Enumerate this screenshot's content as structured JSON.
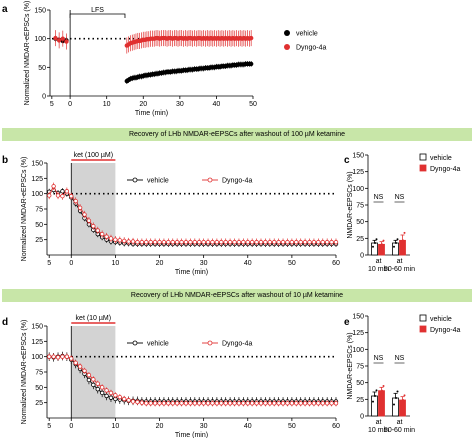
{
  "banners": {
    "b": "Recovery of LHb NMDAR-eEPSCs after washout of  100 µM ketamine",
    "d": "Recovery of LHb NMDAR-eEPSCs after washout of  10 µM ketamine"
  },
  "colors": {
    "vehicle": "#000000",
    "dyngo": "#e03030",
    "shade": "#d3d3d3",
    "banner": "#c8e6a8"
  },
  "chart_data": [
    {
      "panel": "a",
      "type": "scatter",
      "ylabel": "Normalized NMDAR-eEPSCs (%)",
      "xlabel": "Time (min)",
      "xticks": [
        -5,
        0,
        10,
        20,
        30,
        40,
        50
      ],
      "xtick_labels": [
        "5",
        "0",
        "10",
        "20",
        "30",
        "40",
        "50"
      ],
      "yticks": [
        0,
        50,
        100,
        150
      ],
      "xlim": [
        -5.5,
        50
      ],
      "ylim": [
        0,
        150
      ],
      "annotation": "LFS",
      "annotation_range": [
        0,
        15
      ],
      "reference_line": 100,
      "legend": [
        "vehicle",
        "Dyngo-4a"
      ],
      "series": [
        {
          "name": "vehicle",
          "style": "filled-circle",
          "x": [
            -4,
            -3,
            -2,
            -1,
            15.5,
            16,
            16.5,
            17,
            17.5,
            18,
            18.5,
            19,
            19.5,
            20,
            20.5,
            21,
            21.5,
            22,
            22.5,
            23,
            23.5,
            24,
            24.5,
            25,
            25.5,
            26,
            26.5,
            27,
            27.5,
            28,
            28.5,
            29,
            29.5,
            30,
            30.5,
            31,
            31.5,
            32,
            32.5,
            33,
            33.5,
            34,
            34.5,
            35,
            35.5,
            36,
            36.5,
            37,
            37.5,
            38,
            38.5,
            39,
            39.5,
            40,
            40.5,
            41,
            41.5,
            42,
            42.5,
            43,
            43.5,
            44,
            44.5,
            45,
            45.5,
            46,
            46.5,
            47,
            47.5,
            48,
            48.5,
            49,
            49.5
          ],
          "y": [
            100,
            98,
            96,
            97,
            26,
            28,
            30,
            31,
            32,
            32,
            33,
            34,
            34,
            35,
            36,
            36,
            37,
            37,
            38,
            38,
            39,
            39,
            40,
            40,
            41,
            41,
            42,
            42,
            42,
            43,
            43,
            43,
            44,
            44,
            44,
            45,
            45,
            45,
            46,
            46,
            46,
            47,
            47,
            47,
            48,
            48,
            48,
            49,
            49,
            49,
            50,
            50,
            50,
            51,
            51,
            51,
            52,
            52,
            52,
            53,
            53,
            53,
            54,
            54,
            54,
            55,
            55,
            55,
            55,
            56,
            56,
            56,
            56
          ],
          "err": 5
        },
        {
          "name": "Dyngo-4a",
          "style": "filled-circle",
          "x": [
            -4,
            -3,
            -2,
            -1,
            15.5,
            16,
            16.5,
            17,
            17.5,
            18,
            18.5,
            19,
            19.5,
            20,
            20.5,
            21,
            21.5,
            22,
            22.5,
            23,
            23.5,
            24,
            24.5,
            25,
            25.5,
            26,
            26.5,
            27,
            27.5,
            28,
            28.5,
            29,
            29.5,
            30,
            30.5,
            31,
            31.5,
            32,
            32.5,
            33,
            33.5,
            34,
            34.5,
            35,
            35.5,
            36,
            36.5,
            37,
            37.5,
            38,
            38.5,
            39,
            39.5,
            40,
            40.5,
            41,
            41.5,
            42,
            42.5,
            43,
            43.5,
            44,
            44.5,
            45,
            45.5,
            46,
            46.5,
            47,
            47.5,
            48,
            48.5,
            49,
            49.5
          ],
          "y": [
            101,
            97,
            100,
            95,
            88,
            90,
            92,
            93,
            94,
            95,
            96,
            96,
            97,
            98,
            98,
            99,
            99,
            100,
            100,
            100,
            101,
            101,
            100,
            101,
            101,
            101,
            100,
            101,
            101,
            100,
            101,
            101,
            100,
            101,
            101,
            100,
            101,
            100,
            101,
            101,
            100,
            101,
            100,
            101,
            101,
            100,
            101,
            100,
            101,
            100,
            101,
            100,
            101,
            100,
            101,
            100,
            101,
            100,
            101,
            100,
            101,
            100,
            101,
            100,
            101,
            100,
            101,
            100,
            101,
            100,
            101,
            100,
            101
          ],
          "err": 14
        }
      ]
    },
    {
      "panel": "b",
      "type": "line",
      "ylabel": "Normalized NMDAR-eEPSCs (%)",
      "xlabel": "Time (min)",
      "xticks": [
        -5,
        0,
        10,
        20,
        30,
        40,
        50,
        60
      ],
      "xtick_labels": [
        "5",
        "0",
        "10",
        "20",
        "30",
        "40",
        "50",
        "60"
      ],
      "yticks": [
        25,
        50,
        75,
        100,
        125,
        150
      ],
      "xlim": [
        -5.5,
        60
      ],
      "ylim": [
        0,
        150
      ],
      "annotation": "ket (100 µM)",
      "annotation_range": [
        0,
        10
      ],
      "reference_line": 100,
      "legend": [
        "vehicle",
        "Dyngo-4a"
      ],
      "series": [
        {
          "name": "vehicle",
          "style": "open-circle",
          "x": [
            -5,
            -4,
            -3,
            -2,
            -1,
            0,
            1,
            2,
            3,
            4,
            5,
            6,
            7,
            8,
            9,
            10,
            11,
            12,
            13,
            14,
            15,
            16,
            17,
            18,
            19,
            20,
            21,
            22,
            23,
            24,
            25,
            26,
            27,
            28,
            29,
            30,
            31,
            32,
            33,
            34,
            35,
            36,
            37,
            38,
            39,
            40,
            41,
            42,
            43,
            44,
            45,
            46,
            47,
            48,
            49,
            50,
            51,
            52,
            53,
            54,
            55,
            56,
            57,
            58,
            59,
            60
          ],
          "y": [
            103,
            106,
            101,
            104,
            100,
            94,
            84,
            72,
            60,
            50,
            41,
            34,
            29,
            25,
            22,
            21,
            20,
            19,
            19,
            18,
            18,
            18,
            18,
            18,
            18,
            18,
            18,
            18,
            18,
            18,
            18,
            18,
            18,
            18,
            18,
            18,
            18,
            18,
            18,
            18,
            18,
            18,
            18,
            18,
            18,
            18,
            18,
            18,
            18,
            18,
            18,
            18,
            18,
            18,
            18,
            18,
            18,
            18,
            18,
            18,
            18,
            18,
            18,
            18,
            18,
            18
          ],
          "err": 5
        },
        {
          "name": "Dyngo-4a",
          "style": "open-circle",
          "x": [
            -5,
            -4,
            -3,
            -2,
            -1,
            0,
            1,
            2,
            3,
            4,
            5,
            6,
            7,
            8,
            9,
            10,
            11,
            12,
            13,
            14,
            15,
            16,
            17,
            18,
            19,
            20,
            21,
            22,
            23,
            24,
            25,
            26,
            27,
            28,
            29,
            30,
            31,
            32,
            33,
            34,
            35,
            36,
            37,
            38,
            39,
            40,
            41,
            42,
            43,
            44,
            45,
            46,
            47,
            48,
            49,
            50,
            51,
            52,
            53,
            54,
            55,
            56,
            57,
            58,
            59,
            60
          ],
          "y": [
            97,
            112,
            97,
            96,
            104,
            96,
            88,
            77,
            66,
            56,
            47,
            40,
            34,
            30,
            27,
            25,
            24,
            23,
            22,
            22,
            21,
            21,
            21,
            21,
            21,
            21,
            21,
            21,
            21,
            21,
            21,
            21,
            21,
            21,
            21,
            21,
            21,
            21,
            21,
            21,
            21,
            21,
            21,
            21,
            21,
            21,
            21,
            21,
            21,
            21,
            21,
            21,
            21,
            21,
            21,
            21,
            21,
            21,
            21,
            21,
            21,
            21,
            21,
            21,
            21,
            21
          ],
          "err": 6
        }
      ]
    },
    {
      "panel": "c",
      "type": "bar",
      "ylabel": "NMDAR-eEPSCs (%)",
      "categories": [
        "at\n10 min",
        "at\n50-60 min"
      ],
      "yticks": [
        0,
        25,
        50,
        75,
        100,
        125,
        150
      ],
      "ylim": [
        0,
        150
      ],
      "significance": [
        "NS",
        "NS"
      ],
      "legend": [
        "vehicle",
        "Dyngo-4a"
      ],
      "series": [
        {
          "name": "vehicle",
          "values": [
            18,
            18
          ],
          "err": [
            4,
            4
          ],
          "style": "open"
        },
        {
          "name": "Dyngo-4a",
          "values": [
            16,
            22
          ],
          "err": [
            4,
            8
          ],
          "style": "filled"
        }
      ]
    },
    {
      "panel": "d",
      "type": "line",
      "ylabel": "Normalized NMDAR-eEPSCs (%)",
      "xlabel": "Time (min)",
      "xticks": [
        -5,
        0,
        10,
        20,
        30,
        40,
        50,
        60
      ],
      "xtick_labels": [
        "5",
        "0",
        "10",
        "20",
        "30",
        "40",
        "50",
        "60"
      ],
      "yticks": [
        25,
        50,
        75,
        100,
        125,
        150
      ],
      "xlim": [
        -5.5,
        60
      ],
      "ylim": [
        0,
        150
      ],
      "annotation": "ket (10 µM)",
      "annotation_range": [
        0,
        10
      ],
      "reference_line": 100,
      "legend": [
        "vehicle",
        "Dyngo-4a"
      ],
      "series": [
        {
          "name": "vehicle",
          "style": "open-circle",
          "x": [
            -5,
            -4,
            -3,
            -2,
            -1,
            0,
            1,
            2,
            3,
            4,
            5,
            6,
            7,
            8,
            9,
            10,
            11,
            12,
            13,
            14,
            15,
            16,
            17,
            18,
            19,
            20,
            21,
            22,
            23,
            24,
            25,
            26,
            27,
            28,
            29,
            30,
            31,
            32,
            33,
            34,
            35,
            36,
            37,
            38,
            39,
            40,
            41,
            42,
            43,
            44,
            45,
            46,
            47,
            48,
            49,
            50,
            51,
            52,
            53,
            54,
            55,
            56,
            57,
            58,
            59,
            60
          ],
          "y": [
            100,
            99,
            100,
            101,
            100,
            95,
            88,
            80,
            72,
            62,
            54,
            47,
            41,
            36,
            33,
            31,
            30,
            29,
            28,
            28,
            28,
            27,
            27,
            27,
            27,
            27,
            27,
            27,
            27,
            27,
            27,
            27,
            27,
            27,
            27,
            27,
            27,
            27,
            27,
            27,
            27,
            27,
            27,
            27,
            27,
            27,
            27,
            27,
            27,
            27,
            27,
            27,
            27,
            27,
            27,
            27,
            27,
            27,
            27,
            27,
            27,
            27,
            27,
            27,
            27,
            27
          ],
          "err": 7
        },
        {
          "name": "Dyngo-4a",
          "style": "open-circle",
          "x": [
            -5,
            -4,
            -3,
            -2,
            -1,
            0,
            1,
            2,
            3,
            4,
            5,
            6,
            7,
            8,
            9,
            10,
            11,
            12,
            13,
            14,
            15,
            16,
            17,
            18,
            19,
            20,
            21,
            22,
            23,
            24,
            25,
            26,
            27,
            28,
            29,
            30,
            31,
            32,
            33,
            34,
            35,
            36,
            37,
            38,
            39,
            40,
            41,
            42,
            43,
            44,
            45,
            46,
            47,
            48,
            49,
            50,
            51,
            52,
            53,
            54,
            55,
            56,
            57,
            58,
            59,
            60
          ],
          "y": [
            100,
            100,
            99,
            100,
            100,
            97,
            90,
            84,
            77,
            70,
            63,
            56,
            50,
            45,
            41,
            37,
            34,
            31,
            29,
            27,
            26,
            25,
            24,
            24,
            24,
            24,
            24,
            24,
            24,
            24,
            24,
            24,
            24,
            24,
            24,
            24,
            24,
            24,
            24,
            24,
            24,
            24,
            24,
            24,
            24,
            24,
            24,
            24,
            24,
            24,
            24,
            24,
            24,
            24,
            24,
            24,
            24,
            24,
            24,
            24,
            24,
            24,
            24,
            24,
            24,
            24
          ],
          "err": 5
        }
      ]
    },
    {
      "panel": "e",
      "type": "bar",
      "ylabel": "NMDAR-eEPSCs (%)",
      "categories": [
        "at\n10 min",
        "at\n50-60 min"
      ],
      "yticks": [
        0,
        25,
        50,
        75,
        100,
        125,
        150
      ],
      "ylim": [
        0,
        150
      ],
      "significance": [
        "NS",
        "NS"
      ],
      "legend": [
        "vehicle",
        "Dyngo-4a"
      ],
      "series": [
        {
          "name": "vehicle",
          "values": [
            30,
            27
          ],
          "err": [
            6,
            7
          ],
          "style": "open"
        },
        {
          "name": "Dyngo-4a",
          "values": [
            38,
            24
          ],
          "err": [
            5,
            5
          ],
          "style": "filled"
        }
      ]
    }
  ]
}
